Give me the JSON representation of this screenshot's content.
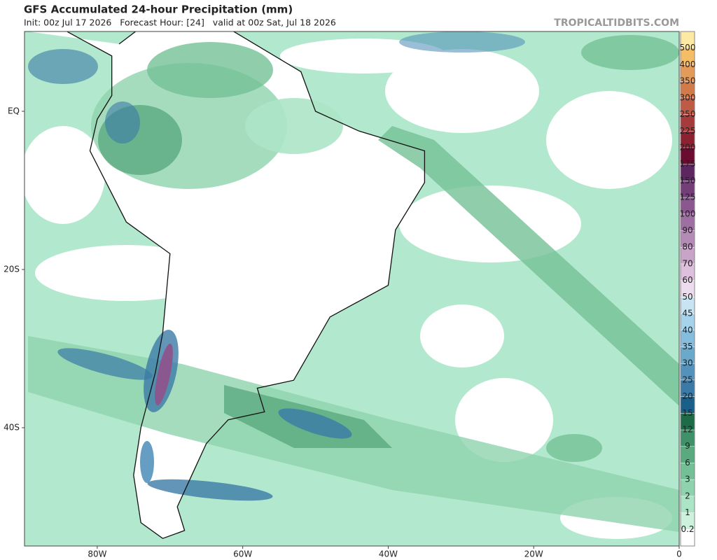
{
  "header": {
    "title": "GFS Accumulated 24-hour Precipitation (mm)",
    "subtitle": "Init: 00z Jul 17 2026   Forecast Hour: [24]   valid at 00z Sat, Jul 18 2026",
    "brand": "TROPICALTIDBITS.COM"
  },
  "map": {
    "lat_labels": [
      {
        "value": 0,
        "label": "EQ"
      },
      {
        "value": -20,
        "label": "20S"
      },
      {
        "value": -40,
        "label": "40S"
      }
    ],
    "lon_labels": [
      {
        "value": -80,
        "label": "80W"
      },
      {
        "value": -60,
        "label": "60W"
      },
      {
        "value": -40,
        "label": "40W"
      },
      {
        "value": -20,
        "label": "20W"
      },
      0
    ]
  },
  "colorbar": {
    "levels": [
      0.2,
      1,
      2,
      3,
      6,
      9,
      12,
      15,
      20,
      25,
      30,
      35,
      40,
      45,
      50,
      60,
      70,
      80,
      90,
      100,
      125,
      150,
      175,
      200,
      225,
      250,
      300,
      350,
      400,
      500
    ],
    "colors": [
      "#ffffff",
      "#cdf1dc",
      "#ace4c6",
      "#8fd3ae",
      "#74c096",
      "#5aaa80",
      "#3e9168",
      "#1d6b47",
      "#1a5e8a",
      "#3b7aa6",
      "#5592bb",
      "#6aa8cc",
      "#86bddc",
      "#a6d2ea",
      "#c8e4f3",
      "#ecdcee",
      "#dcc0dc",
      "#c8a4c8",
      "#b48ab6",
      "#9e70a2",
      "#8a578e",
      "#743f79",
      "#5c2660",
      "#6b0b2f",
      "#8b2131",
      "#a63b3b",
      "#be5b45",
      "#d17b4b",
      "#e39b59",
      "#f3be67",
      "#fde9a4"
    ]
  }
}
